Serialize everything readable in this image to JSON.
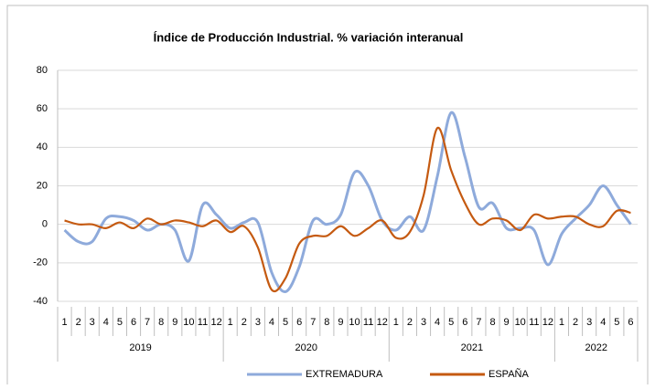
{
  "chart_data": {
    "type": "line",
    "title": "Índice de Producción Industrial. % variación interanual",
    "categories": [
      "1",
      "2",
      "3",
      "4",
      "5",
      "6",
      "7",
      "8",
      "9",
      "10",
      "11",
      "12",
      "1",
      "2",
      "3",
      "4",
      "5",
      "6",
      "7",
      "8",
      "9",
      "10",
      "11",
      "12",
      "1",
      "2",
      "3",
      "4",
      "5",
      "6",
      "7",
      "8",
      "9",
      "10",
      "11",
      "12",
      "1",
      "2",
      "3",
      "4",
      "5",
      "6"
    ],
    "years": [
      "2019",
      "2020",
      "2021",
      "2022"
    ],
    "series": [
      {
        "name": "EXTREMADURA",
        "color": "#8eaadb",
        "values": [
          -3,
          -9,
          -9,
          3,
          4,
          2,
          -3,
          0,
          -3,
          -19,
          10,
          5,
          -2,
          1,
          1,
          -25,
          -35,
          -22,
          2,
          0,
          5,
          27,
          20,
          2,
          -3,
          4,
          -3,
          25,
          58,
          35,
          9,
          11,
          -2,
          -2,
          -3,
          -21,
          -5,
          3,
          10,
          20,
          10,
          0
        ]
      },
      {
        "name": "ESPAÑA",
        "color": "#c55a11",
        "values": [
          2,
          0,
          0,
          -2,
          1,
          -2,
          3,
          0,
          2,
          1,
          -1,
          2,
          -4,
          -1,
          -12,
          -34,
          -28,
          -10,
          -6,
          -6,
          -1,
          -6,
          -2,
          2,
          -7,
          -4,
          15,
          50,
          28,
          11,
          0,
          3,
          2,
          -3,
          5,
          3,
          4,
          4,
          0,
          -1,
          7,
          6
        ]
      }
    ],
    "ylim": [
      -40,
      80
    ],
    "yticks": [
      -40,
      -20,
      0,
      20,
      40,
      60,
      80
    ],
    "grid": true
  }
}
